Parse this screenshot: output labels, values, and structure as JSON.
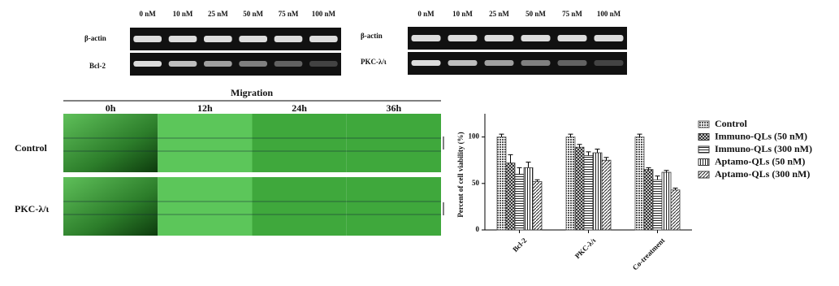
{
  "gel_left": {
    "lanes": [
      "0 nM",
      "10 nM",
      "25 nM",
      "50 nM",
      "75 nM",
      "100 nM"
    ],
    "rows": [
      "β-actin",
      "Bcl-2"
    ]
  },
  "gel_right": {
    "lanes": [
      "0 nM",
      "10 nM",
      "25 nM",
      "50 nM",
      "75 nM",
      "100 nM"
    ],
    "rows": [
      "β-actin",
      "PKC-λ/ι"
    ]
  },
  "migration": {
    "title": "Migration",
    "times": [
      "0h",
      "12h",
      "24h",
      "36h"
    ],
    "rows": [
      "Control",
      "PKC-λ/ι"
    ]
  },
  "chart_data": {
    "type": "bar",
    "y_label": "Percent of cell viability (%)",
    "categories": [
      "Bcl-2",
      "PKC-λ/ι",
      "Co-treatment"
    ],
    "ylim": [
      0,
      125
    ],
    "yticks": [
      0,
      50,
      100
    ],
    "series": [
      {
        "name": "Control",
        "color": "#555555",
        "pattern": "dots",
        "values": [
          100,
          100,
          100
        ],
        "errors": [
          3,
          3,
          3
        ]
      },
      {
        "name": "Immuno-QLs (50 nM)",
        "color": "#333333",
        "pattern": "crosshatch",
        "values": [
          72,
          89,
          65
        ],
        "errors": [
          9,
          3,
          2
        ]
      },
      {
        "name": "Immuno-QLs (300 nM)",
        "color": "#333333",
        "pattern": "horizontal",
        "values": [
          60,
          80,
          54
        ],
        "errors": [
          7,
          4,
          4
        ]
      },
      {
        "name": "Aptamo-QLs (50 nM)",
        "color": "#333333",
        "pattern": "vertical",
        "values": [
          67,
          83,
          62
        ],
        "errors": [
          6,
          4,
          2
        ]
      },
      {
        "name": "Aptamo-QLs (300 nM)",
        "color": "#333333",
        "pattern": "diagonal",
        "values": [
          52,
          75,
          43
        ],
        "errors": [
          2,
          3,
          2
        ]
      }
    ]
  }
}
